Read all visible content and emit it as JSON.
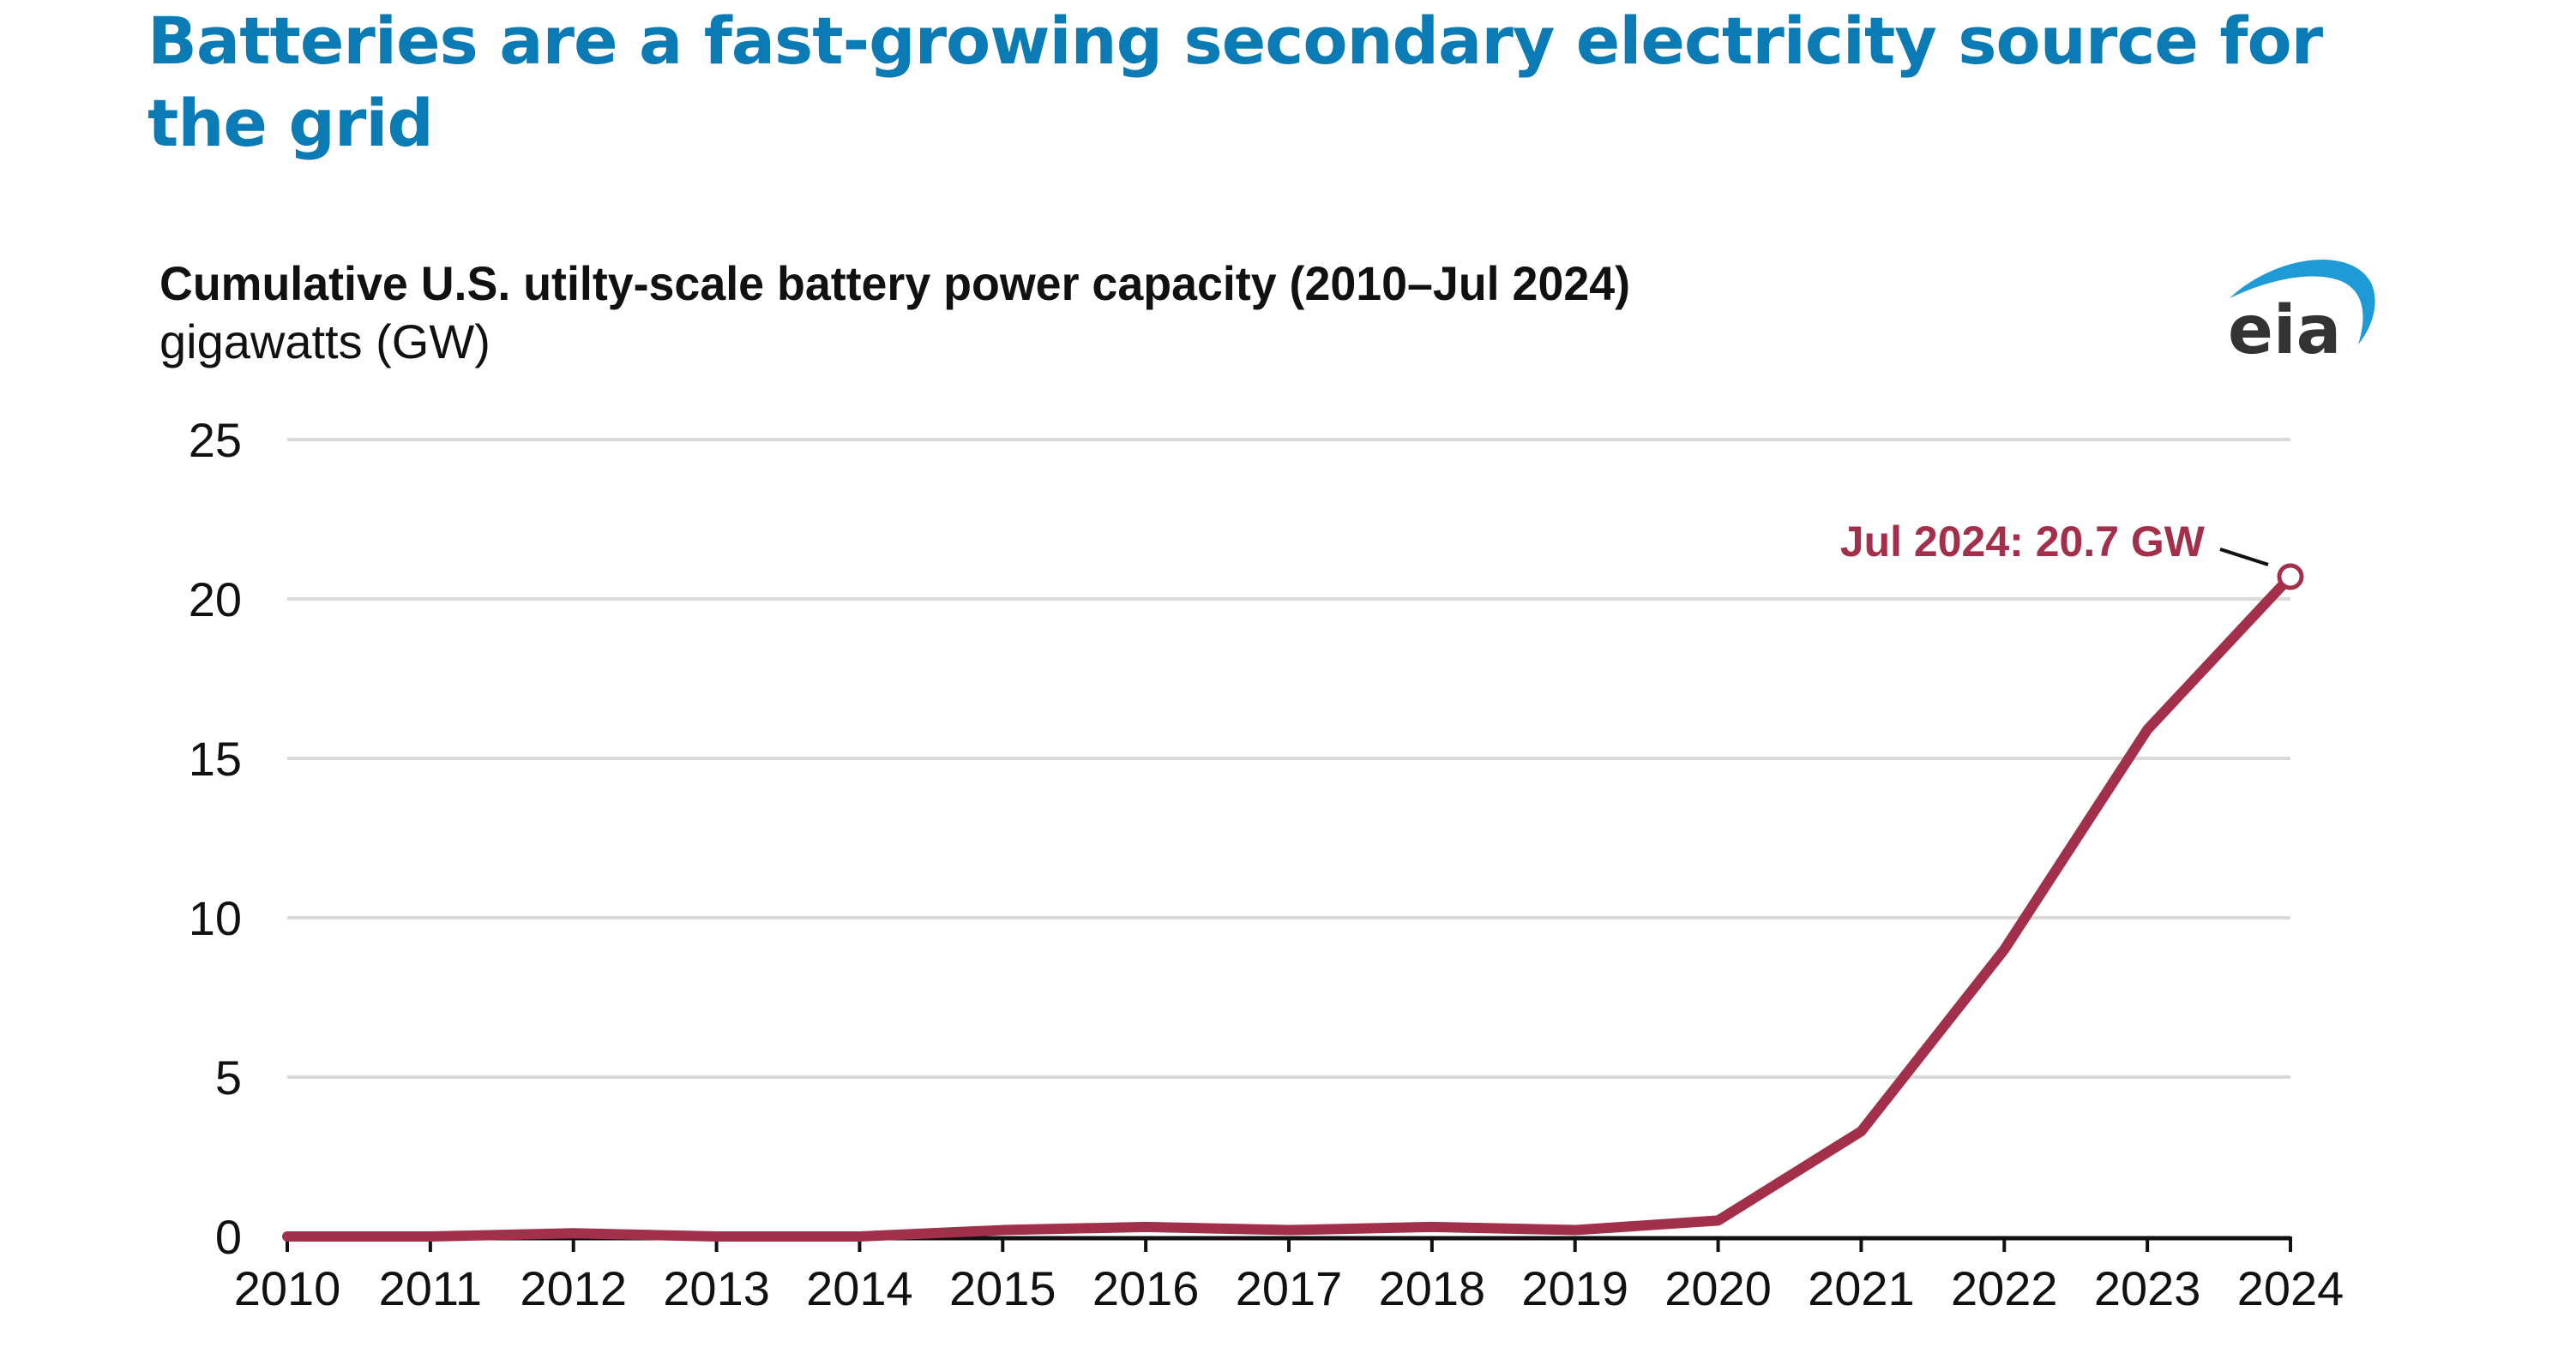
{
  "headline": "Batteries are a fast-growing secondary electricity source for the grid",
  "logo": {
    "icon": "eia-logo-icon",
    "text": "eia"
  },
  "colors": {
    "headline": "#0a7bb5",
    "series": "#a3304a",
    "gridline": "#d9d9d9",
    "axis": "#111111",
    "logo_arc": "#1e9ad6",
    "logo_text": "#333333"
  },
  "chart_data": {
    "type": "line",
    "title": "Cumulative U.S. utilty-scale battery power capacity (2010–Jul 2024)",
    "ylabel": "gigawatts (GW)",
    "xlabel": "",
    "categories": [
      "2010",
      "2011",
      "2012",
      "2013",
      "2014",
      "2015",
      "2016",
      "2017",
      "2018",
      "2019",
      "2020",
      "2021",
      "2022",
      "2023",
      "2024"
    ],
    "series": [
      {
        "name": "Cumulative battery power capacity",
        "values": [
          0.0,
          0.0,
          0.1,
          0.0,
          0.0,
          0.2,
          0.3,
          0.2,
          0.3,
          0.2,
          0.5,
          3.3,
          9.0,
          15.9,
          20.7
        ]
      }
    ],
    "ylim": [
      0,
      25
    ],
    "yticks": [
      0,
      5,
      10,
      15,
      20,
      25
    ],
    "grid": true,
    "legend": "none",
    "annotations": [
      {
        "text": "Jul 2024: 20.7 GW",
        "x": "2024",
        "y": 20.7,
        "marker": "open-circle"
      }
    ]
  }
}
